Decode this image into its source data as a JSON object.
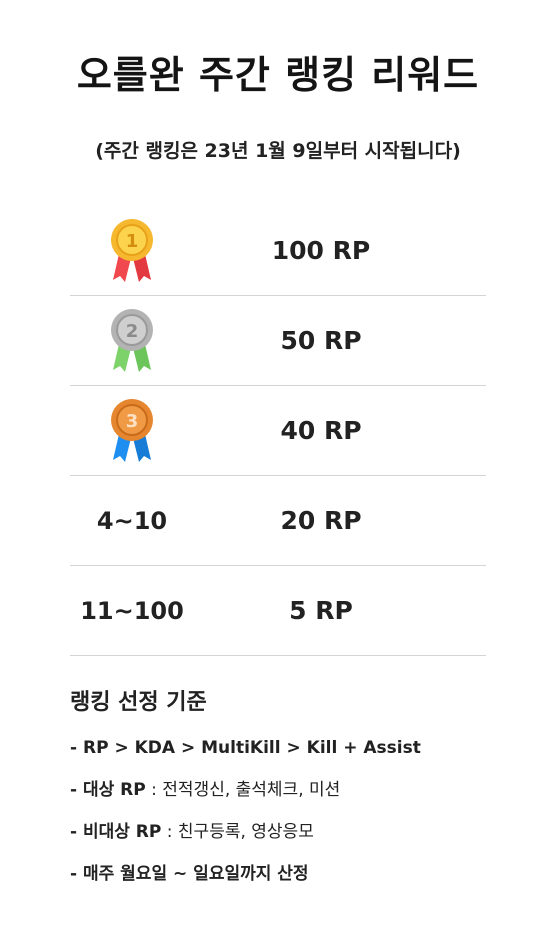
{
  "header": {
    "title": "오를완 주간 랭킹 리워드",
    "subtitle": "(주간 랭킹은 23년 1월 9일부터 시작됩니다)"
  },
  "rankings": [
    {
      "rank_label": "",
      "medal": "gold-medal-icon",
      "reward": "100 RP"
    },
    {
      "rank_label": "",
      "medal": "silver-medal-icon",
      "reward": "50 RP"
    },
    {
      "rank_label": "",
      "medal": "bronze-medal-icon",
      "reward": "40 RP"
    },
    {
      "rank_label": "4~10",
      "medal": "",
      "reward": "20 RP"
    },
    {
      "rank_label": "11~100",
      "medal": "",
      "reward": "5 RP"
    }
  ],
  "criteria": {
    "title": "랭킹 선정 기준",
    "items": [
      {
        "prefix": "- RP > KDA > MultiKill > Kill + Assist",
        "detail": ""
      },
      {
        "prefix": "- 대상 RP",
        "detail": " : 전적갱신, 출석체크, 미션"
      },
      {
        "prefix": "- 비대상 RP",
        "detail": " : 친구등록, 영상응모"
      },
      {
        "prefix": "- 매주 월요일 ~ 일요일까지 산정",
        "detail": ""
      }
    ]
  },
  "colors": {
    "gold": "#f5b82e",
    "gold_ribbon": "#f0484d",
    "silver": "#b3b3b3",
    "silver_ribbon": "#7dd36a",
    "bronze": "#e6862f",
    "bronze_ribbon": "#1e8ff0",
    "divider": "#d4d4d4"
  }
}
